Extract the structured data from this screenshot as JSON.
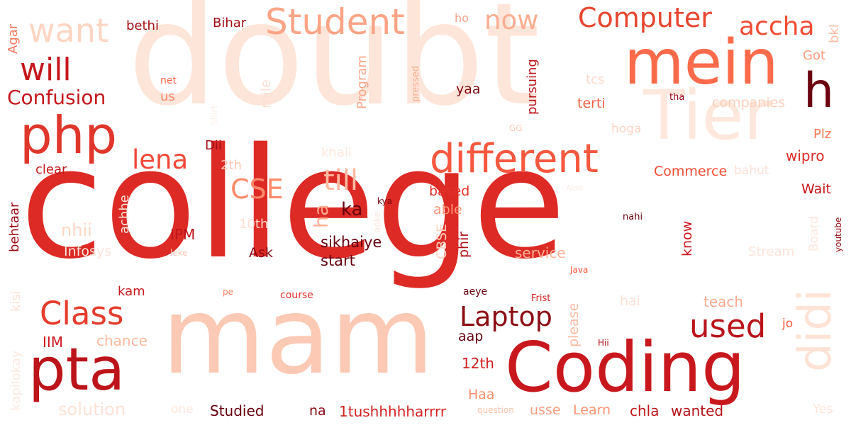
{
  "words": [
    {
      "text": "doubt",
      "color": "#fee5d9"
    },
    {
      "text": "college",
      "color": "#dd2a25"
    },
    {
      "text": "mam",
      "color": "#fcc9b4"
    },
    {
      "text": "Coding",
      "color": "#c9181d"
    },
    {
      "text": "mein",
      "color": "#fb6b4b"
    },
    {
      "text": "h",
      "color": "#6b010e"
    },
    {
      "text": "Tier",
      "color": "#fee8dd"
    },
    {
      "text": "php",
      "color": "#e0362b"
    },
    {
      "text": "pta",
      "color": "#bc141a"
    },
    {
      "text": "didi",
      "color": "#fee3d6"
    },
    {
      "text": "different",
      "color": "#f6583f"
    },
    {
      "text": "Student",
      "color": "#fca486"
    },
    {
      "text": "want",
      "color": "#fdd5c3"
    },
    {
      "text": "will",
      "color": "#c5171c"
    },
    {
      "text": "Computer",
      "color": "#e7452f"
    },
    {
      "text": "accha",
      "color": "#f24c34"
    },
    {
      "text": "now",
      "color": "#fcad90"
    },
    {
      "text": "Class",
      "color": "#e53c2d"
    },
    {
      "text": "Laptop",
      "color": "#8c0d14"
    },
    {
      "text": "used",
      "color": "#ba1419"
    },
    {
      "text": "Confusion",
      "color": "#c5171c"
    },
    {
      "text": "lena",
      "color": "#f0483a"
    },
    {
      "text": "till",
      "color": "#fcbba1"
    },
    {
      "text": "CSE",
      "color": "#fc8a6a"
    },
    {
      "text": "ka",
      "color": "#67000d"
    },
    {
      "text": "ha",
      "color": "#fcad90"
    },
    {
      "text": "bethi",
      "color": "#a50f15"
    },
    {
      "text": "Bihar",
      "color": "#a50f15"
    },
    {
      "text": "ho",
      "color": "#f4a58a"
    },
    {
      "text": "Agar",
      "color": "#f67860"
    },
    {
      "text": "net",
      "color": "#fb6a4a"
    },
    {
      "text": "us",
      "color": "#fb8a6a"
    },
    {
      "text": "Shirt",
      "color": "#fff0e8"
    },
    {
      "text": "mile",
      "color": "#fde0d2"
    },
    {
      "text": "Program",
      "color": "#fca689"
    },
    {
      "text": "pressed",
      "color": "#fcad90"
    },
    {
      "text": "yaa",
      "color": "#800a11"
    },
    {
      "text": "pursuing",
      "color": "#bb151a"
    },
    {
      "text": "tcs",
      "color": "#fcdacb"
    },
    {
      "text": "terti",
      "color": "#f06044"
    },
    {
      "text": "tha",
      "color": "#99000d"
    },
    {
      "text": "companies",
      "color": "#fdd0bc"
    },
    {
      "text": "bkl",
      "color": "#fcbda4"
    },
    {
      "text": "Got",
      "color": "#fb9b7a"
    },
    {
      "text": "Plz",
      "color": "#fb7656"
    },
    {
      "text": "hoga",
      "color": "#fdd4c2"
    },
    {
      "text": "GG",
      "color": "#fdcbb6"
    },
    {
      "text": "wipro",
      "color": "#dd2a25"
    },
    {
      "text": "Dii",
      "color": "#9e0d14"
    },
    {
      "text": "2th",
      "color": "#fdc6b0"
    },
    {
      "text": "clear",
      "color": "#c1161b"
    },
    {
      "text": "khali",
      "color": "#fee7db"
    },
    {
      "text": "Commerce",
      "color": "#f24c34"
    },
    {
      "text": "bahut",
      "color": "#fee3d7"
    },
    {
      "text": "behtaar",
      "color": "#9c0d14"
    },
    {
      "text": "achhe",
      "color": "#fde5d9"
    },
    {
      "text": "nhii",
      "color": "#fdd7c6"
    },
    {
      "text": "10th",
      "color": "#fde0d2"
    },
    {
      "text": "IPM",
      "color": "#bd151a"
    },
    {
      "text": "Infosys",
      "color": "#fee5d9"
    },
    {
      "text": "based",
      "color": "#e43027"
    },
    {
      "text": "kya",
      "color": "#7a0510"
    },
    {
      "text": "apke",
      "color": "#fde7dc"
    },
    {
      "text": "Aiml",
      "color": "#feece4"
    },
    {
      "text": "able",
      "color": "#fc9777"
    },
    {
      "text": "Wait",
      "color": "#c8171c"
    },
    {
      "text": "nahi",
      "color": "#67000d"
    },
    {
      "text": "know",
      "color": "#cb181d"
    },
    {
      "text": "Board",
      "color": "#fee8de"
    },
    {
      "text": "youtube",
      "color": "#980c13"
    },
    {
      "text": "Stream",
      "color": "#fee4d8"
    },
    {
      "text": "sikhaiye",
      "color": "#67000d"
    },
    {
      "text": "start",
      "color": "#67000d"
    },
    {
      "text": "CBSE",
      "color": "#fdd2bf"
    },
    {
      "text": "phir",
      "color": "#b11218"
    },
    {
      "text": "service",
      "color": "#fcb296"
    },
    {
      "text": "Java",
      "color": "#f6583e"
    },
    {
      "text": "Ask",
      "color": "#8a0812"
    },
    {
      "text": "leke",
      "color": "#fdc9b3"
    },
    {
      "text": "kisi",
      "color": "#fee2d5"
    },
    {
      "text": "kam",
      "color": "#c9181d"
    },
    {
      "text": "pe",
      "color": "#fb7d5d"
    },
    {
      "text": "course",
      "color": "#e32f27"
    },
    {
      "text": "aeye",
      "color": "#67000d"
    },
    {
      "text": "Frist",
      "color": "#d42121"
    },
    {
      "text": "hai",
      "color": "#fee2d5"
    },
    {
      "text": "teach",
      "color": "#fcab8f"
    },
    {
      "text": "Yes",
      "color": "#fee5d9"
    },
    {
      "text": "please",
      "color": "#fcbba1"
    },
    {
      "text": "jo",
      "color": "#f5553d"
    },
    {
      "text": "Hii",
      "color": "#b11218"
    },
    {
      "text": "IIM",
      "color": "#cc191e"
    },
    {
      "text": "chance",
      "color": "#fcb99f"
    },
    {
      "text": "aap",
      "color": "#67000d"
    },
    {
      "text": "12th",
      "color": "#d01d1f"
    },
    {
      "text": "Haa",
      "color": "#fc8e6e"
    },
    {
      "text": "kapilokay",
      "color": "#feeae0"
    },
    {
      "text": "solution",
      "color": "#fee3d7"
    },
    {
      "text": "one",
      "color": "#fee6da"
    },
    {
      "text": "Studied",
      "color": "#67000d"
    },
    {
      "text": "na",
      "color": "#8a0812"
    },
    {
      "text": "1tushhhhharrrr",
      "color": "#d52221"
    },
    {
      "text": "question",
      "color": "#fcc2aa"
    },
    {
      "text": "usse",
      "color": "#fc9e80"
    },
    {
      "text": "Learn",
      "color": "#fc9373"
    },
    {
      "text": "chla",
      "color": "#c2161b"
    },
    {
      "text": "wanted",
      "color": "#b51319"
    }
  ]
}
